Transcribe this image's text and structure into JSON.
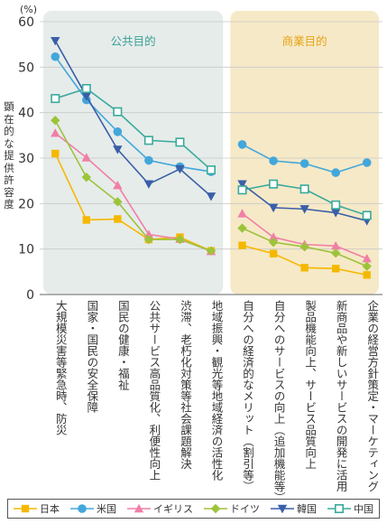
{
  "chart_data": {
    "type": "line",
    "unit_label": "(%)",
    "ylabel": "顕在的な提供許容度",
    "ylim": [
      0,
      60
    ],
    "yticks": [
      0,
      10,
      20,
      30,
      40,
      50,
      60
    ],
    "regions": [
      {
        "label": "公共目的",
        "from": 0,
        "to": 5,
        "color": "#e6ecea"
      },
      {
        "label": "商業目的",
        "from": 6,
        "to": 10,
        "color": "#f6e9c7"
      }
    ],
    "categories": [
      "大規模災害等緊急時、防災",
      "国家・国民の安全保障",
      "国民の健康・福祉",
      "公共サービス高品質化、利便性向上",
      "渋滞、老朽化対策等社会課題解決",
      "地域振興・観光等地域経済の活性化",
      "自分への経済的なメリット（割引等）",
      "自分へのサービスの向上（追加機能等）",
      "製品機能向上、サービス品質向上",
      "新商品や新しいサービスの開発に活用",
      "企業の経営方針策定・マーケティング"
    ],
    "series": [
      {
        "name": "日本",
        "color": "#f5b800",
        "marker": "square",
        "values": [
          31.0,
          16.4,
          16.6,
          12.1,
          12.6,
          9.6,
          10.8,
          9.0,
          5.9,
          5.7,
          4.3
        ]
      },
      {
        "name": "米国",
        "color": "#42a7db",
        "marker": "circle",
        "values": [
          52.3,
          42.8,
          35.8,
          29.5,
          28.1,
          27.0,
          33.0,
          29.4,
          28.8,
          26.8,
          29.0
        ]
      },
      {
        "name": "イギリス",
        "color": "#f07fa8",
        "marker": "triangle-up",
        "values": [
          35.5,
          30.1,
          24.0,
          13.2,
          12.2,
          9.5,
          17.8,
          12.6,
          11.0,
          10.7,
          7.9
        ]
      },
      {
        "name": "ドイツ",
        "color": "#9dc33b",
        "marker": "diamond",
        "values": [
          38.3,
          25.8,
          20.4,
          12.1,
          12.1,
          9.6,
          14.6,
          11.5,
          10.5,
          9.1,
          6.2
        ]
      },
      {
        "name": "韓国",
        "color": "#3a5fa8",
        "marker": "triangle-down",
        "values": [
          55.8,
          43.6,
          31.9,
          24.3,
          27.6,
          21.6,
          24.3,
          19.1,
          18.8,
          18.0,
          16.2
        ]
      },
      {
        "name": "中国",
        "color": "#3aaa9c",
        "marker": "square-open",
        "values": [
          43.1,
          45.3,
          40.2,
          33.9,
          33.5,
          27.4,
          23.0,
          24.3,
          23.2,
          19.7,
          17.4
        ]
      }
    ]
  }
}
